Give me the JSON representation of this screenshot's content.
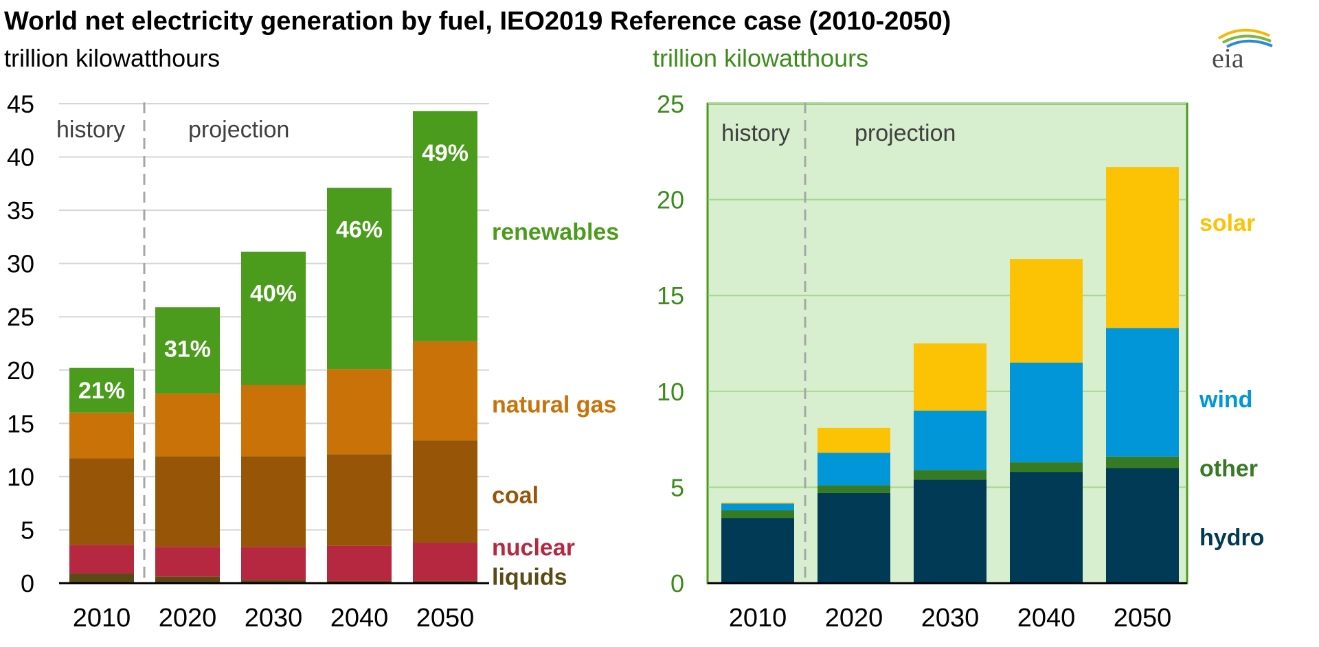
{
  "title": "World net electricity generation by fuel, IEO2019 Reference case (2010-2050)",
  "logo_text": "eia",
  "colors": {
    "liquids": "#5a4a14",
    "nuclear": "#b5283f",
    "coal": "#975607",
    "natural_gas": "#c97208",
    "renewables": "#4b9b1c",
    "hydro": "#003a54",
    "other": "#367a24",
    "wind": "#0096d7",
    "solar": "#fcc204",
    "right_panel_bg": "#d8efcf",
    "right_panel_border": "#4b9b1c",
    "green_text": "#3c8c1c"
  },
  "chart_data": [
    {
      "type": "bar",
      "stacked": true,
      "units_label": "trillion kilowatthours",
      "categories": [
        "2010",
        "2020",
        "2030",
        "2040",
        "2050"
      ],
      "ylim": [
        0,
        45
      ],
      "yticks": [
        "0",
        "5",
        "10",
        "15",
        "20",
        "25",
        "30",
        "35",
        "40",
        "45"
      ],
      "grid": true,
      "history_label": "history",
      "projection_label": "projection",
      "series": [
        {
          "name": "liquids",
          "color_key": "liquids",
          "values": [
            0.9,
            0.6,
            0.3,
            0.2,
            0.2
          ]
        },
        {
          "name": "nuclear",
          "color_key": "nuclear",
          "values": [
            2.7,
            2.8,
            3.1,
            3.3,
            3.6
          ]
        },
        {
          "name": "coal",
          "color_key": "coal",
          "values": [
            8.1,
            8.5,
            8.5,
            8.6,
            9.6
          ]
        },
        {
          "name": "natural gas",
          "color_key": "natural_gas",
          "values": [
            4.3,
            5.9,
            6.7,
            8.0,
            9.3
          ]
        },
        {
          "name": "renewables",
          "color_key": "renewables",
          "values": [
            4.2,
            8.1,
            12.5,
            17.0,
            21.6
          ]
        }
      ],
      "renewable_share_labels": [
        "21%",
        "31%",
        "40%",
        "46%",
        "49%"
      ],
      "legend_labels": [
        {
          "text": "renewables",
          "color_key": "renewables",
          "y": 33
        },
        {
          "text": "natural gas",
          "color_key": "natural_gas",
          "y": 16.8
        },
        {
          "text": "coal",
          "color_key": "coal",
          "y": 8.3
        },
        {
          "text": "nuclear",
          "color_key": "nuclear",
          "y": 3.4
        },
        {
          "text": "liquids",
          "color_key": "liquids",
          "y": 0.6
        }
      ]
    },
    {
      "type": "bar",
      "stacked": true,
      "units_label": "trillion kilowatthours",
      "categories": [
        "2010",
        "2020",
        "2030",
        "2040",
        "2050"
      ],
      "ylim": [
        0,
        25
      ],
      "yticks": [
        "0",
        "5",
        "10",
        "15",
        "20",
        "25"
      ],
      "grid": true,
      "history_label": "history",
      "projection_label": "projection",
      "series": [
        {
          "name": "hydro",
          "color_key": "hydro",
          "values": [
            3.4,
            4.7,
            5.4,
            5.8,
            6.0
          ]
        },
        {
          "name": "other",
          "color_key": "other",
          "values": [
            0.4,
            0.4,
            0.5,
            0.5,
            0.6
          ]
        },
        {
          "name": "wind",
          "color_key": "wind",
          "values": [
            0.35,
            1.7,
            3.1,
            5.2,
            6.7
          ]
        },
        {
          "name": "solar",
          "color_key": "solar",
          "values": [
            0.05,
            1.3,
            3.5,
            5.4,
            8.4
          ]
        }
      ],
      "legend_labels": [
        {
          "text": "solar",
          "color_key": "solar",
          "y": 18.8
        },
        {
          "text": "wind",
          "color_key": "wind",
          "y": 9.6
        },
        {
          "text": "other",
          "color_key": "other",
          "y": 6.0
        },
        {
          "text": "hydro",
          "color_key": "hydro",
          "y": 2.4
        }
      ]
    }
  ]
}
